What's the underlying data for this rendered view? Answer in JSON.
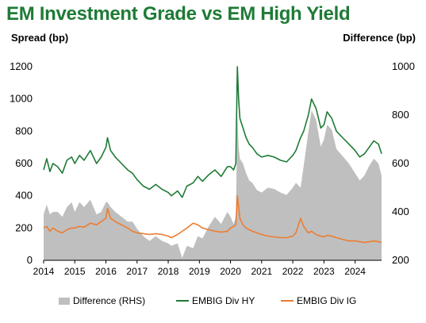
{
  "title": "EM Investment Grade vs EM High Yield",
  "left_axis_title": "Spread (bp)",
  "right_axis_title": "Difference (bp)",
  "colors": {
    "hy": "#1e7b36",
    "ig": "#ed7d31",
    "diff": "#bfbfbf",
    "title": "#1e7b36"
  },
  "legend": {
    "diff": "Difference (RHS)",
    "hy": "EMBIG Div HY",
    "ig": "EMBIG Div IG"
  },
  "chart_data": {
    "type": "line",
    "x_tick_labels": [
      "2014",
      "2015",
      "2016",
      "2017",
      "2018",
      "2019",
      "2020",
      "2021",
      "2022",
      "2023",
      "2024"
    ],
    "x_range": [
      2014.0,
      2024.85
    ],
    "y_left_ticks": [
      "0",
      "200",
      "400",
      "600",
      "800",
      "1000",
      "1200"
    ],
    "y_left_range": [
      0,
      1200
    ],
    "y_right_ticks": [
      "200",
      "400",
      "600",
      "800",
      "1000"
    ],
    "y_right_range": [
      200,
      1000
    ],
    "series": [
      {
        "name": "EMBIG Div HY",
        "axis": "left",
        "x": [
          2014.0,
          2014.1,
          2014.2,
          2014.3,
          2014.45,
          2014.6,
          2014.75,
          2014.9,
          2015.0,
          2015.15,
          2015.3,
          2015.5,
          2015.7,
          2015.85,
          2016.0,
          2016.05,
          2016.15,
          2016.3,
          2016.5,
          2016.7,
          2016.85,
          2017.0,
          2017.2,
          2017.4,
          2017.6,
          2017.8,
          2018.0,
          2018.1,
          2018.3,
          2018.45,
          2018.6,
          2018.8,
          2018.95,
          2019.1,
          2019.3,
          2019.5,
          2019.7,
          2019.9,
          2020.0,
          2020.1,
          2020.17,
          2020.22,
          2020.26,
          2020.3,
          2020.4,
          2020.5,
          2020.6,
          2020.7,
          2020.85,
          2021.0,
          2021.2,
          2021.4,
          2021.6,
          2021.8,
          2022.0,
          2022.1,
          2022.25,
          2022.35,
          2022.5,
          2022.6,
          2022.75,
          2022.9,
          2023.0,
          2023.1,
          2023.25,
          2023.4,
          2023.6,
          2023.8,
          2024.0,
          2024.15,
          2024.3,
          2024.45,
          2024.6,
          2024.75,
          2024.85
        ],
        "values": [
          560,
          630,
          550,
          600,
          580,
          540,
          620,
          640,
          600,
          650,
          620,
          680,
          600,
          640,
          700,
          760,
          680,
          640,
          600,
          560,
          540,
          500,
          460,
          440,
          470,
          440,
          420,
          400,
          430,
          390,
          460,
          480,
          520,
          490,
          530,
          560,
          520,
          580,
          580,
          560,
          600,
          1200,
          1000,
          880,
          820,
          760,
          720,
          700,
          660,
          640,
          650,
          640,
          620,
          610,
          650,
          680,
          760,
          800,
          900,
          1000,
          940,
          820,
          840,
          920,
          880,
          800,
          760,
          720,
          680,
          640,
          660,
          700,
          740,
          720,
          660
        ]
      },
      {
        "name": "EMBIG Div IG",
        "axis": "left",
        "x": [
          2014.0,
          2014.1,
          2014.2,
          2014.3,
          2014.45,
          2014.6,
          2014.75,
          2014.9,
          2015.0,
          2015.15,
          2015.3,
          2015.5,
          2015.7,
          2015.85,
          2016.0,
          2016.05,
          2016.15,
          2016.3,
          2016.5,
          2016.7,
          2016.85,
          2017.0,
          2017.2,
          2017.4,
          2017.6,
          2017.8,
          2018.0,
          2018.1,
          2018.3,
          2018.45,
          2018.6,
          2018.8,
          2018.95,
          2019.1,
          2019.3,
          2019.5,
          2019.7,
          2019.9,
          2020.0,
          2020.1,
          2020.17,
          2020.22,
          2020.26,
          2020.3,
          2020.4,
          2020.5,
          2020.6,
          2020.7,
          2020.85,
          2021.0,
          2021.2,
          2021.4,
          2021.6,
          2021.8,
          2022.0,
          2022.1,
          2022.25,
          2022.35,
          2022.5,
          2022.6,
          2022.75,
          2022.9,
          2023.0,
          2023.1,
          2023.25,
          2023.4,
          2023.6,
          2023.8,
          2024.0,
          2024.15,
          2024.3,
          2024.45,
          2024.6,
          2024.75,
          2024.85
        ],
        "values": [
          200,
          210,
          180,
          200,
          180,
          170,
          190,
          200,
          200,
          210,
          205,
          230,
          220,
          240,
          260,
          320,
          260,
          240,
          220,
          200,
          180,
          170,
          165,
          160,
          165,
          160,
          150,
          140,
          160,
          180,
          200,
          230,
          220,
          200,
          190,
          180,
          175,
          180,
          200,
          210,
          220,
          400,
          330,
          260,
          220,
          200,
          190,
          180,
          170,
          160,
          150,
          145,
          140,
          140,
          150,
          170,
          260,
          210,
          170,
          180,
          160,
          150,
          145,
          155,
          150,
          140,
          130,
          120,
          120,
          115,
          110,
          115,
          120,
          115,
          110
        ]
      },
      {
        "name": "Difference (RHS)",
        "axis": "right",
        "x": [
          2014.0,
          2014.1,
          2014.2,
          2014.3,
          2014.45,
          2014.6,
          2014.75,
          2014.9,
          2015.0,
          2015.15,
          2015.3,
          2015.5,
          2015.7,
          2015.85,
          2016.0,
          2016.05,
          2016.15,
          2016.3,
          2016.5,
          2016.7,
          2016.85,
          2017.0,
          2017.2,
          2017.4,
          2017.6,
          2017.8,
          2018.0,
          2018.1,
          2018.3,
          2018.45,
          2018.6,
          2018.8,
          2018.95,
          2019.1,
          2019.3,
          2019.5,
          2019.7,
          2019.9,
          2020.0,
          2020.1,
          2020.17,
          2020.22,
          2020.26,
          2020.3,
          2020.4,
          2020.5,
          2020.6,
          2020.7,
          2020.85,
          2021.0,
          2021.2,
          2021.4,
          2021.6,
          2021.8,
          2022.0,
          2022.1,
          2022.25,
          2022.35,
          2022.5,
          2022.6,
          2022.75,
          2022.9,
          2023.0,
          2023.1,
          2023.25,
          2023.4,
          2023.6,
          2023.8,
          2024.0,
          2024.15,
          2024.3,
          2024.45,
          2024.6,
          2024.75,
          2024.85
        ],
        "values": [
          390,
          430,
          390,
          400,
          400,
          380,
          420,
          440,
          400,
          440,
          420,
          450,
          390,
          400,
          440,
          440,
          420,
          400,
          380,
          360,
          360,
          330,
          300,
          280,
          300,
          280,
          270,
          260,
          270,
          210,
          260,
          250,
          300,
          290,
          340,
          380,
          350,
          400,
          380,
          350,
          380,
          800,
          670,
          620,
          600,
          560,
          530,
          520,
          490,
          480,
          500,
          495,
          480,
          470,
          500,
          520,
          500,
          590,
          730,
          820,
          780,
          670,
          700,
          760,
          740,
          660,
          630,
          600,
          560,
          530,
          550,
          590,
          620,
          600,
          550
        ]
      }
    ]
  }
}
